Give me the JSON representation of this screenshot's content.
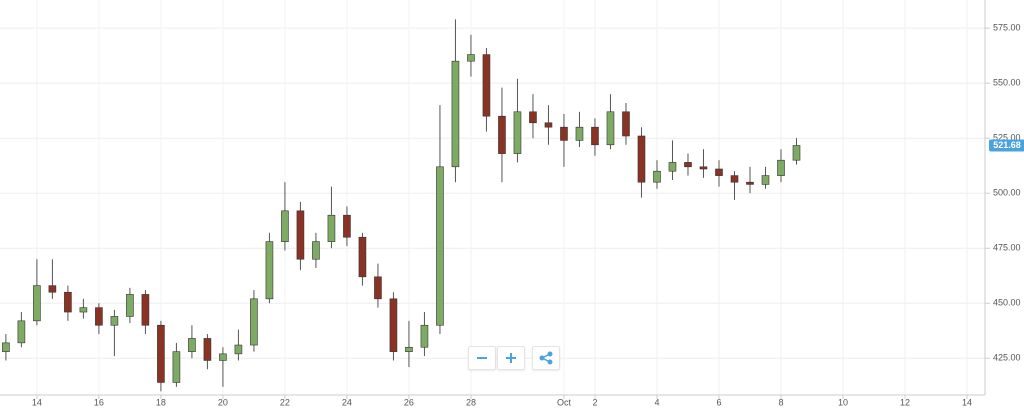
{
  "chart_data": {
    "type": "candlestick",
    "x": [
      13,
      13.5,
      14,
      14.5,
      15,
      15.5,
      16,
      16.5,
      17,
      17.5,
      18,
      18.5,
      19,
      19.5,
      20,
      20.5,
      21,
      21.5,
      22,
      22.5,
      23,
      23.5,
      24,
      24.5,
      25,
      25.5,
      26,
      26.5,
      27,
      27.5,
      28,
      28.5,
      29,
      29.5,
      30,
      30.5,
      31,
      31.5,
      32,
      32.5,
      33,
      33.5,
      34,
      34.5,
      35,
      35.5,
      36,
      36.5,
      37,
      37.5,
      38,
      38.5
    ],
    "open": [
      428,
      432,
      442,
      458,
      455,
      446,
      448,
      440,
      444,
      454,
      440,
      414,
      428,
      434,
      424,
      427,
      431,
      452,
      478,
      492,
      470,
      478,
      490,
      480,
      462,
      452,
      428,
      430,
      440,
      512,
      560,
      563,
      535,
      518,
      537,
      532,
      530,
      524,
      530,
      522,
      537,
      526,
      505,
      510,
      514,
      512,
      511,
      508,
      505,
      504,
      508,
      515
    ],
    "high": [
      436,
      446,
      470,
      470,
      458,
      452,
      450,
      447,
      457,
      456,
      442,
      432,
      440,
      436,
      430,
      438,
      456,
      482,
      505,
      496,
      482,
      503,
      494,
      482,
      468,
      455,
      442,
      446,
      540,
      579,
      572,
      566,
      548,
      552,
      545,
      540,
      536,
      537,
      534,
      545,
      541,
      530,
      515,
      524,
      518,
      520,
      515,
      510,
      512,
      512,
      520,
      525
    ],
    "low": [
      424,
      430,
      440,
      452,
      442,
      443,
      436,
      426,
      441,
      436,
      410,
      412,
      425,
      420,
      412,
      424,
      428,
      450,
      474,
      465,
      466,
      475,
      476,
      458,
      448,
      424,
      421,
      426,
      436,
      505,
      553,
      528,
      505,
      514,
      525,
      522,
      512,
      521,
      517,
      520,
      522,
      498,
      502,
      506,
      508,
      507,
      503,
      497,
      500,
      502,
      505,
      513
    ],
    "close": [
      432,
      442,
      458,
      455,
      446,
      448,
      440,
      444,
      454,
      440,
      414,
      428,
      434,
      424,
      427,
      431,
      452,
      478,
      492,
      470,
      478,
      490,
      480,
      462,
      452,
      428,
      430,
      440,
      512,
      560,
      563,
      535,
      518,
      537,
      532,
      530,
      524,
      530,
      522,
      537,
      526,
      505,
      510,
      514,
      512,
      511,
      508,
      505,
      504,
      508,
      515,
      521.68
    ],
    "up_color": "#7eab63",
    "down_color": "#8a3324",
    "xlim": [
      12.81,
      44.58
    ],
    "xticks": [
      14,
      16,
      18,
      20,
      22,
      24,
      26,
      28,
      {
        "value": 31,
        "label": "Oct"
      },
      {
        "value": 32,
        "label": "2"
      },
      {
        "value": 34,
        "label": "4"
      },
      {
        "value": 36,
        "label": "6"
      },
      {
        "value": 38,
        "label": "8"
      },
      {
        "value": 40,
        "label": "10"
      },
      {
        "value": 42,
        "label": "12"
      },
      {
        "value": 44,
        "label": "14"
      }
    ],
    "ylim": [
      408.3,
      587.8
    ],
    "yticks": [
      {
        "value": 425,
        "label": "425.00"
      },
      {
        "value": 450,
        "label": "450.00"
      },
      {
        "value": 475,
        "label": "475.00"
      },
      {
        "value": 500,
        "label": "500.00"
      },
      {
        "value": 525,
        "label": "525.00"
      },
      {
        "value": 550,
        "label": "550.00"
      },
      {
        "value": 575,
        "label": "575.00"
      }
    ],
    "grid": true
  }
}
